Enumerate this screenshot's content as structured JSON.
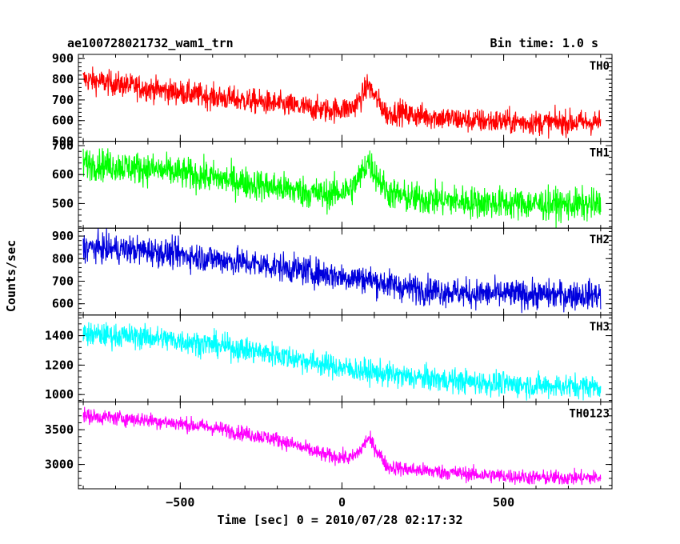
{
  "header": {
    "title": "ae100728021732_wam1_trn",
    "bin_time": "Bin time: 1.0 s"
  },
  "chart_data": {
    "type": "line",
    "title": "ae100728021732_wam1_trn",
    "xlabel": "Time [sec] 0 = 2010/07/28 02:17:32",
    "ylabel": "Counts/sec",
    "xlim": [
      -815,
      835
    ],
    "x_ticks": [
      -500,
      0,
      500
    ],
    "x_tick_labels": [
      "−500",
      "0",
      "500"
    ],
    "x_range_data": [
      -800,
      800
    ],
    "series": [
      {
        "name": "TH0",
        "color": "#ff0000",
        "ylim": [
          500,
          920
        ],
        "y_ticks": [
          500,
          600,
          700,
          800,
          900
        ],
        "y_tick_labels": [
          "500",
          "600",
          "700",
          "800",
          "900"
        ],
        "trend": [
          [
            -800,
            800
          ],
          [
            -600,
            755
          ],
          [
            -400,
            715
          ],
          [
            -200,
            680
          ],
          [
            -50,
            650
          ],
          [
            30,
            660
          ],
          [
            60,
            710
          ],
          [
            80,
            775
          ],
          [
            100,
            720
          ],
          [
            140,
            630
          ],
          [
            180,
            645
          ],
          [
            200,
            630
          ],
          [
            400,
            600
          ],
          [
            600,
            590
          ],
          [
            800,
            592
          ]
        ],
        "noise": 30
      },
      {
        "name": "TH1",
        "color": "#00ff00",
        "ylim": [
          415,
          715
        ],
        "y_ticks": [
          500,
          600,
          700
        ],
        "y_tick_labels": [
          "500",
          "600",
          "700"
        ],
        "trend": [
          [
            -800,
            640
          ],
          [
            -600,
            620
          ],
          [
            -400,
            590
          ],
          [
            -200,
            555
          ],
          [
            -50,
            530
          ],
          [
            30,
            550
          ],
          [
            60,
            600
          ],
          [
            80,
            650
          ],
          [
            100,
            610
          ],
          [
            140,
            540
          ],
          [
            200,
            520
          ],
          [
            400,
            505
          ],
          [
            600,
            498
          ],
          [
            800,
            495
          ]
        ],
        "noise": 28
      },
      {
        "name": "TH2",
        "color": "#0000dd",
        "ylim": [
          550,
          935
        ],
        "y_ticks": [
          600,
          700,
          800,
          900
        ],
        "y_tick_labels": [
          "600",
          "700",
          "800",
          "900"
        ],
        "trend": [
          [
            -800,
            850
          ],
          [
            -600,
            835
          ],
          [
            -400,
            800
          ],
          [
            -200,
            765
          ],
          [
            0,
            720
          ],
          [
            80,
            710
          ],
          [
            100,
            700
          ],
          [
            200,
            670
          ],
          [
            400,
            645
          ],
          [
            600,
            640
          ],
          [
            800,
            640
          ]
        ],
        "noise": 32
      },
      {
        "name": "TH3",
        "color": "#00ffff",
        "ylim": [
          950,
          1540
        ],
        "y_ticks": [
          1000,
          1200,
          1400
        ],
        "y_tick_labels": [
          "1000",
          "1200",
          "1400"
        ],
        "trend": [
          [
            -800,
            1410
          ],
          [
            -600,
            1390
          ],
          [
            -400,
            1340
          ],
          [
            -200,
            1270
          ],
          [
            0,
            1180
          ],
          [
            200,
            1120
          ],
          [
            400,
            1085
          ],
          [
            600,
            1060
          ],
          [
            800,
            1055
          ]
        ],
        "noise": 42
      },
      {
        "name": "TH0123",
        "color": "#ff00ff",
        "ylim": [
          2650,
          3900
        ],
        "y_ticks": [
          3000,
          3500
        ],
        "y_tick_labels": [
          "3000",
          "3500"
        ],
        "trend": [
          [
            -800,
            3700
          ],
          [
            -600,
            3640
          ],
          [
            -400,
            3530
          ],
          [
            -200,
            3360
          ],
          [
            -50,
            3130
          ],
          [
            30,
            3090
          ],
          [
            60,
            3220
          ],
          [
            80,
            3380
          ],
          [
            100,
            3260
          ],
          [
            140,
            2970
          ],
          [
            200,
            2930
          ],
          [
            400,
            2860
          ],
          [
            600,
            2810
          ],
          [
            800,
            2810
          ]
        ],
        "noise": 55
      }
    ]
  }
}
